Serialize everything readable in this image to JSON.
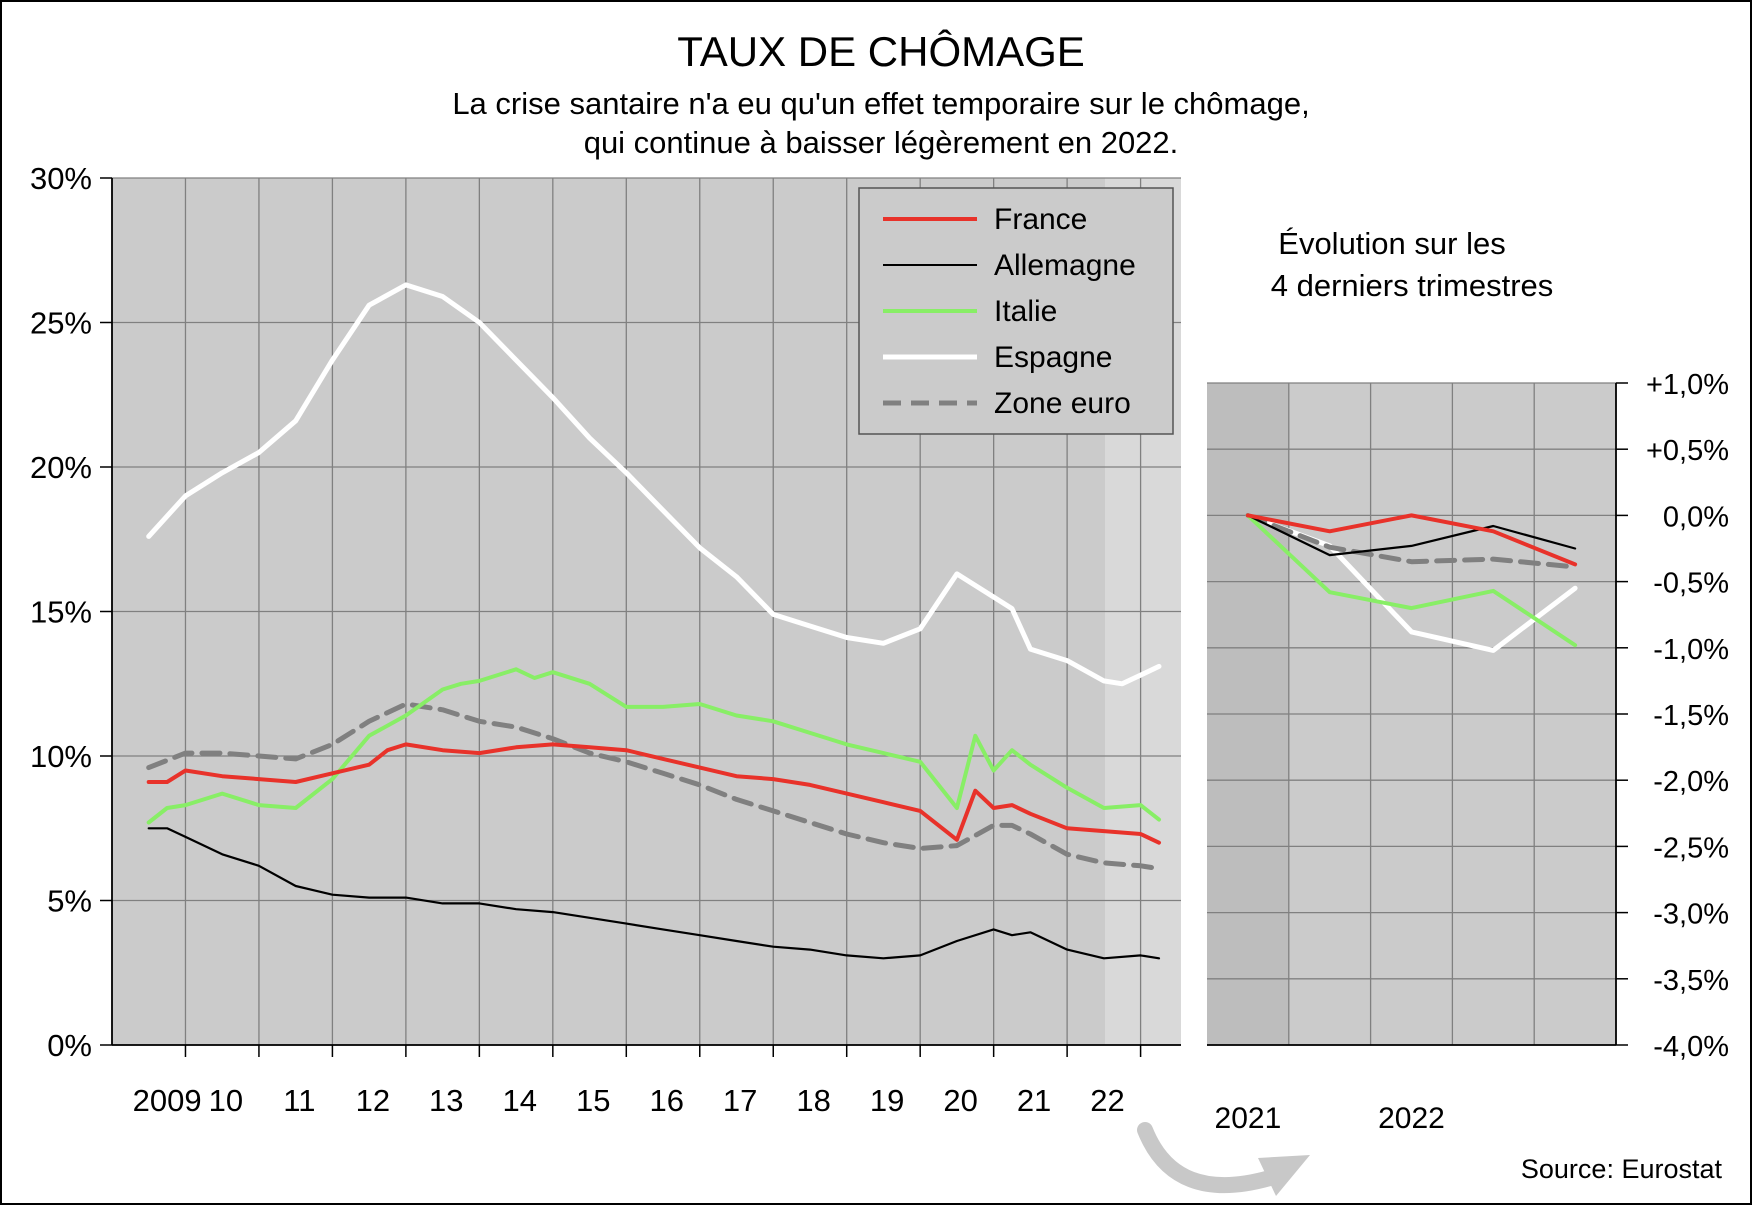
{
  "header": {
    "title": "TAUX DE CHÔMAGE",
    "subtitle_line1": "La crise santaire n'a eu qu'un effet temporaire sur le chômage,",
    "subtitle_line2": "qui continue à baisser légèrement en 2022."
  },
  "side_title_line1": "Évolution sur les",
  "side_title_line2": "4 derniers trimestres",
  "source": "Source: Eurostat",
  "colors": {
    "France": "#e8322a",
    "Allemagne": "#000000",
    "Italie": "#88ee66",
    "Espagne": "#ffffff",
    "Zone euro": "#808080",
    "plot_bg": "#cbcbcb",
    "plot_bg_recent": "#d9d9d9"
  },
  "legend": [
    {
      "name": "France",
      "style": "solid"
    },
    {
      "name": "Allemagne",
      "style": "thin"
    },
    {
      "name": "Italie",
      "style": "solid"
    },
    {
      "name": "Espagne",
      "style": "solid"
    },
    {
      "name": "Zone euro",
      "style": "dashed"
    }
  ],
  "chart_data": [
    {
      "type": "line",
      "title": "TAUX DE CHÔMAGE",
      "y_tick_labels": [
        "0%",
        "5%",
        "10%",
        "15%",
        "20%",
        "25%",
        "30%"
      ],
      "ylim": [
        0,
        30
      ],
      "x_tick_labels": [
        "2009",
        "10",
        "11",
        "12",
        "13",
        "14",
        "15",
        "16",
        "17",
        "18",
        "19",
        "20",
        "21",
        "22"
      ],
      "x_range": [
        2009.0,
        2023.0
      ],
      "grid": true,
      "legend_position": "top-right",
      "series": [
        {
          "name": "France",
          "x": [
            2009.0,
            2009.25,
            2009.5,
            2010.0,
            2010.5,
            2011.0,
            2011.5,
            2012.0,
            2012.25,
            2012.5,
            2013.0,
            2013.5,
            2014.0,
            2014.5,
            2015.0,
            2015.5,
            2016.0,
            2016.5,
            2017.0,
            2017.5,
            2018.0,
            2018.5,
            2019.0,
            2019.5,
            2020.0,
            2020.25,
            2020.5,
            2020.75,
            2021.0,
            2021.5,
            2022.0,
            2022.5,
            2022.75
          ],
          "values": [
            9.1,
            9.1,
            9.5,
            9.3,
            9.2,
            9.1,
            9.4,
            9.7,
            10.2,
            10.4,
            10.2,
            10.1,
            10.3,
            10.4,
            10.3,
            10.2,
            9.9,
            9.6,
            9.3,
            9.2,
            9.0,
            8.7,
            8.4,
            8.1,
            7.1,
            8.8,
            8.2,
            8.3,
            8.0,
            7.5,
            7.4,
            7.3,
            7.0
          ]
        },
        {
          "name": "Allemagne",
          "x": [
            2009.0,
            2009.25,
            2009.5,
            2010.0,
            2010.5,
            2011.0,
            2011.5,
            2012.0,
            2012.5,
            2013.0,
            2013.5,
            2014.0,
            2014.5,
            2015.0,
            2015.5,
            2016.0,
            2016.5,
            2017.0,
            2017.5,
            2018.0,
            2018.5,
            2019.0,
            2019.5,
            2020.0,
            2020.5,
            2020.75,
            2021.0,
            2021.5,
            2022.0,
            2022.5,
            2022.75
          ],
          "values": [
            7.5,
            7.5,
            7.2,
            6.6,
            6.2,
            5.5,
            5.2,
            5.1,
            5.1,
            4.9,
            4.9,
            4.7,
            4.6,
            4.4,
            4.2,
            4.0,
            3.8,
            3.6,
            3.4,
            3.3,
            3.1,
            3.0,
            3.1,
            3.6,
            4.0,
            3.8,
            3.9,
            3.3,
            3.0,
            3.1,
            3.0
          ]
        },
        {
          "name": "Italie",
          "x": [
            2009.0,
            2009.25,
            2009.5,
            2010.0,
            2010.5,
            2011.0,
            2011.5,
            2012.0,
            2012.5,
            2013.0,
            2013.25,
            2013.5,
            2014.0,
            2014.25,
            2014.5,
            2015.0,
            2015.5,
            2016.0,
            2016.5,
            2017.0,
            2017.5,
            2018.0,
            2018.5,
            2019.0,
            2019.5,
            2020.0,
            2020.25,
            2020.5,
            2020.75,
            2021.0,
            2021.5,
            2022.0,
            2022.5,
            2022.75
          ],
          "values": [
            7.7,
            8.2,
            8.3,
            8.7,
            8.3,
            8.2,
            9.2,
            10.7,
            11.4,
            12.3,
            12.5,
            12.6,
            13.0,
            12.7,
            12.9,
            12.5,
            11.7,
            11.7,
            11.8,
            11.4,
            11.2,
            10.8,
            10.4,
            10.1,
            9.8,
            8.2,
            10.7,
            9.5,
            10.2,
            9.7,
            8.9,
            8.2,
            8.3,
            7.8
          ]
        },
        {
          "name": "Espagne",
          "x": [
            2009.0,
            2009.5,
            2010.0,
            2010.5,
            2011.0,
            2011.5,
            2012.0,
            2012.5,
            2013.0,
            2013.5,
            2014.0,
            2014.5,
            2015.0,
            2015.5,
            2016.0,
            2016.5,
            2017.0,
            2017.5,
            2018.0,
            2018.5,
            2019.0,
            2019.5,
            2020.0,
            2020.5,
            2020.75,
            2021.0,
            2021.5,
            2022.0,
            2022.25,
            2022.5,
            2022.75
          ],
          "values": [
            17.6,
            19.0,
            19.8,
            20.5,
            21.6,
            23.7,
            25.6,
            26.3,
            25.9,
            25.0,
            23.7,
            22.4,
            21.0,
            19.8,
            18.5,
            17.2,
            16.2,
            14.9,
            14.5,
            14.1,
            13.9,
            14.4,
            16.3,
            15.5,
            15.1,
            13.7,
            13.3,
            12.6,
            12.5,
            12.8,
            13.1
          ]
        },
        {
          "name": "Zone euro",
          "x": [
            2009.0,
            2009.5,
            2010.0,
            2010.5,
            2011.0,
            2011.5,
            2012.0,
            2012.5,
            2013.0,
            2013.5,
            2014.0,
            2014.5,
            2015.0,
            2015.5,
            2016.0,
            2016.5,
            2017.0,
            2017.5,
            2018.0,
            2018.5,
            2019.0,
            2019.5,
            2020.0,
            2020.5,
            2020.75,
            2021.0,
            2021.5,
            2022.0,
            2022.5,
            2022.75
          ],
          "values": [
            9.6,
            10.1,
            10.1,
            10.0,
            9.9,
            10.4,
            11.2,
            11.8,
            11.6,
            11.2,
            11.0,
            10.6,
            10.1,
            9.8,
            9.4,
            9.0,
            8.5,
            8.1,
            7.7,
            7.3,
            7.0,
            6.8,
            6.9,
            7.6,
            7.6,
            7.3,
            6.6,
            6.3,
            6.2,
            6.1
          ]
        }
      ]
    },
    {
      "type": "line",
      "title": "Évolution sur les 4 derniers trimestres",
      "y_tick_labels": [
        "+1,0%",
        "+0,5%",
        "0,0%",
        "-0,5%",
        "-1,0%",
        "-1,5%",
        "-2,0%",
        "-2,5%",
        "-3,0%",
        "-3,5%",
        "-4,0%"
      ],
      "ylim": [
        -4.0,
        1.0
      ],
      "x_tick_labels": [
        "2021",
        "2022"
      ],
      "x_range": [
        0,
        5
      ],
      "grid": true,
      "series": [
        {
          "name": "France",
          "x": [
            0.5,
            1.5,
            2.5,
            3.5,
            4.5
          ],
          "values": [
            0.0,
            -0.12,
            0.0,
            -0.12,
            -0.37
          ]
        },
        {
          "name": "Allemagne",
          "x": [
            0.5,
            1.5,
            2.5,
            3.5,
            4.5
          ],
          "values": [
            0.0,
            -0.3,
            -0.23,
            -0.08,
            -0.25
          ]
        },
        {
          "name": "Italie",
          "x": [
            0.5,
            1.5,
            2.5,
            3.5,
            4.5
          ],
          "values": [
            0.0,
            -0.58,
            -0.7,
            -0.57,
            -0.98
          ]
        },
        {
          "name": "Espagne",
          "x": [
            0.5,
            1.5,
            2.5,
            3.5,
            4.5
          ],
          "values": [
            0.0,
            -0.23,
            -0.88,
            -1.02,
            -0.55
          ]
        },
        {
          "name": "Zone euro",
          "x": [
            0.5,
            1.5,
            2.5,
            3.5,
            4.5
          ],
          "values": [
            0.0,
            -0.24,
            -0.35,
            -0.33,
            -0.39
          ]
        }
      ]
    }
  ]
}
